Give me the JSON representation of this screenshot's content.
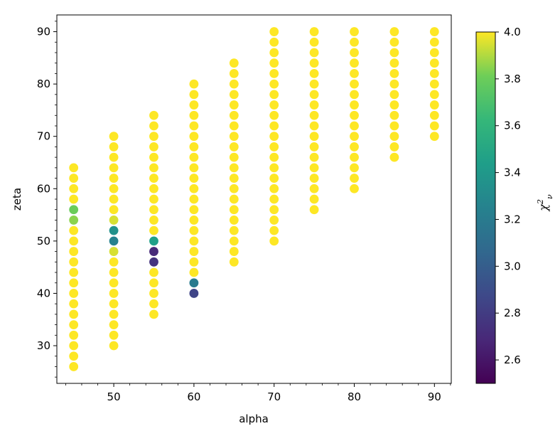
{
  "chart_data": {
    "type": "scatter",
    "xlabel": "alpha",
    "ylabel": "zeta",
    "xlim": [
      42.9,
      92.1
    ],
    "ylim": [
      22.8,
      93.2
    ],
    "x_ticks": [
      50,
      60,
      70,
      80,
      90
    ],
    "y_ticks": [
      30,
      40,
      50,
      60,
      70,
      80,
      90
    ],
    "grid": false,
    "colorbar": {
      "label": "χ²ν",
      "colormap": "viridis",
      "range": [
        2.5,
        4.0
      ],
      "ticks": [
        "2.6",
        "2.8",
        "3.0",
        "3.2",
        "3.4",
        "3.6",
        "3.8",
        "4.0"
      ]
    },
    "columns": [
      {
        "alpha": 45,
        "zeta_min": 26,
        "zeta_max": 64,
        "step": 2
      },
      {
        "alpha": 50,
        "zeta_min": 30,
        "zeta_max": 70,
        "step": 2
      },
      {
        "alpha": 55,
        "zeta_min": 36,
        "zeta_max": 74,
        "step": 2
      },
      {
        "alpha": 60,
        "zeta_min": 40,
        "zeta_max": 80,
        "step": 2
      },
      {
        "alpha": 65,
        "zeta_min": 46,
        "zeta_max": 84,
        "step": 2
      },
      {
        "alpha": 70,
        "zeta_min": 50,
        "zeta_max": 90,
        "step": 2
      },
      {
        "alpha": 75,
        "zeta_min": 56,
        "zeta_max": 90,
        "step": 2
      },
      {
        "alpha": 80,
        "zeta_min": 60,
        "zeta_max": 90,
        "step": 2
      },
      {
        "alpha": 85,
        "zeta_min": 66,
        "zeta_max": 90,
        "step": 2
      },
      {
        "alpha": 90,
        "zeta_min": 70,
        "zeta_max": 90,
        "step": 2
      }
    ],
    "default_chi2": 4.0,
    "special_points": [
      {
        "alpha": 45,
        "zeta": 56,
        "chi2": 3.8
      },
      {
        "alpha": 45,
        "zeta": 54,
        "chi2": 3.85
      },
      {
        "alpha": 50,
        "zeta": 54,
        "chi2": 3.95
      },
      {
        "alpha": 50,
        "zeta": 52,
        "chi2": 3.35
      },
      {
        "alpha": 50,
        "zeta": 50,
        "chi2": 3.25
      },
      {
        "alpha": 50,
        "zeta": 48,
        "chi2": 3.95
      },
      {
        "alpha": 55,
        "zeta": 50,
        "chi2": 3.45
      },
      {
        "alpha": 55,
        "zeta": 48,
        "chi2": 2.7
      },
      {
        "alpha": 55,
        "zeta": 46,
        "chi2": 2.75
      },
      {
        "alpha": 60,
        "zeta": 42,
        "chi2": 3.2
      },
      {
        "alpha": 60,
        "zeta": 40,
        "chi2": 2.85
      }
    ]
  }
}
